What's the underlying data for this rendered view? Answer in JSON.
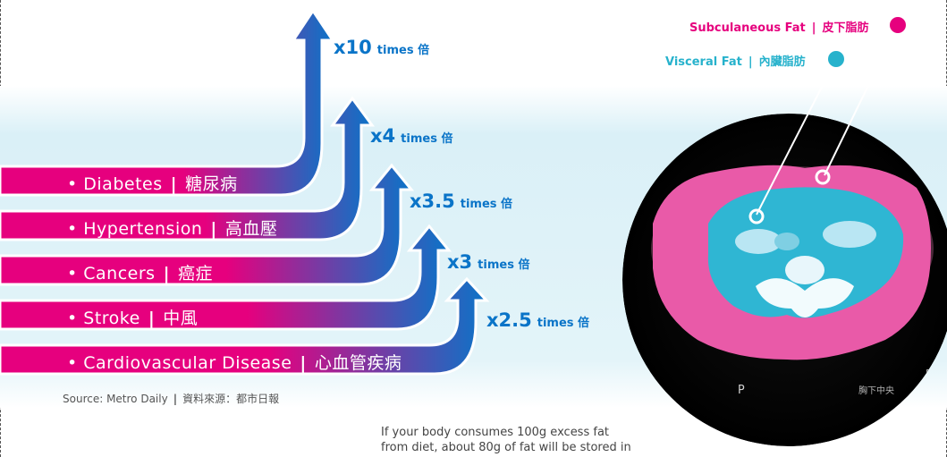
{
  "diseases": [
    {
      "name": "Diabetes",
      "zh": "糖尿病"
    },
    {
      "name": "Hypertension",
      "zh": "高血壓"
    },
    {
      "name": "Cancers",
      "zh": "癌症"
    },
    {
      "name": "Stroke",
      "zh": "中風"
    },
    {
      "name": "Cardiovascular Disease",
      "zh": "心血管疾病"
    }
  ],
  "multipliers": [
    {
      "value": "x10",
      "unit": "times 倍"
    },
    {
      "value": "x4",
      "unit": "times 倍"
    },
    {
      "value": "x3.5",
      "unit": "times 倍"
    },
    {
      "value": "x3",
      "unit": "times 倍"
    },
    {
      "value": "x2.5",
      "unit": "times 倍"
    }
  ],
  "bullet": "•",
  "separator": "|",
  "source": {
    "en": "Source: Metro Daily",
    "zh": "資料來源：都市日報"
  },
  "note_lines": [
    "If your body consumes 100g excess fat",
    "from diet, about 80g of fat will be stored in"
  ],
  "legend": {
    "subcutaneous": {
      "en": "Subculaneous Fat",
      "zh": "皮下脂肪"
    },
    "visceral": {
      "en": "Visceral Fat",
      "zh": "內臟脂肪"
    }
  },
  "scan_labels": {
    "p": "P",
    "tag": "胸下中央",
    "right": "FOR"
  },
  "colors": {
    "magenta": "#e6007e",
    "blue": "#0a74c8",
    "cyan": "#27b2cc",
    "scan_cyan": "#2fb6d3",
    "bg_band": "#daf0f7"
  }
}
